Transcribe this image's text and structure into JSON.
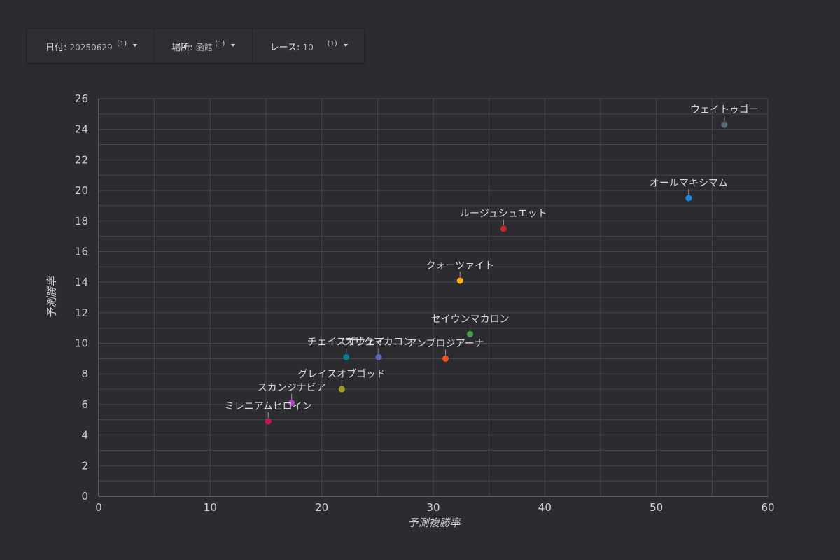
{
  "filters": {
    "date": {
      "label": "日付",
      "value": "20250629",
      "count": "(1)"
    },
    "place": {
      "label": "場所",
      "value": "函館",
      "count": "(1)"
    },
    "race": {
      "label": "レース",
      "value": "10",
      "count": "(1)"
    }
  },
  "colors": {
    "background": "#2c2b30",
    "grid": "#48474c",
    "axis_text": "#d0d0d2"
  },
  "chart_data": {
    "type": "scatter",
    "xlabel": "予測複勝率",
    "ylabel": "予測勝率",
    "xlim": [
      0,
      60
    ],
    "ylim": [
      0,
      26
    ],
    "x_ticks": [
      0,
      10,
      20,
      30,
      40,
      50,
      60
    ],
    "y_ticks": [
      0,
      2,
      4,
      6,
      8,
      10,
      12,
      14,
      16,
      18,
      20,
      22,
      24,
      26
    ],
    "grid": true,
    "points": [
      {
        "label": "ウェイトゥゴー",
        "x": 56.1,
        "y": 24.3,
        "color": "#546e7a"
      },
      {
        "label": "オールマキシマム",
        "x": 52.9,
        "y": 19.5,
        "color": "#1e88e5"
      },
      {
        "label": "ルージュシュエット",
        "x": 36.3,
        "y": 17.5,
        "color": "#c62828"
      },
      {
        "label": "クォーツァイト",
        "x": 32.4,
        "y": 14.1,
        "color": "#fbb117"
      },
      {
        "label": "セイウンマカロン",
        "x": 33.3,
        "y": 10.6,
        "color": "#43a047"
      },
      {
        "label": "アンブロジアーナ",
        "x": 31.1,
        "y": 9.0,
        "color": "#f4511e"
      },
      {
        "label": "チェイスザウェイ",
        "x": 22.2,
        "y": 9.1,
        "color": "#00838f"
      },
      {
        "label": "スザクマカロン",
        "x": 25.1,
        "y": 9.1,
        "color": "#5c6bc0"
      },
      {
        "label": "グレイスオブゴッド",
        "x": 21.8,
        "y": 7.0,
        "color": "#9e9d24"
      },
      {
        "label": "スカンジナビア",
        "x": 17.3,
        "y": 6.1,
        "color": "#ab47bc"
      },
      {
        "label": "ミレニアムヒロイン",
        "x": 15.2,
        "y": 4.9,
        "color": "#c2185b"
      }
    ]
  }
}
